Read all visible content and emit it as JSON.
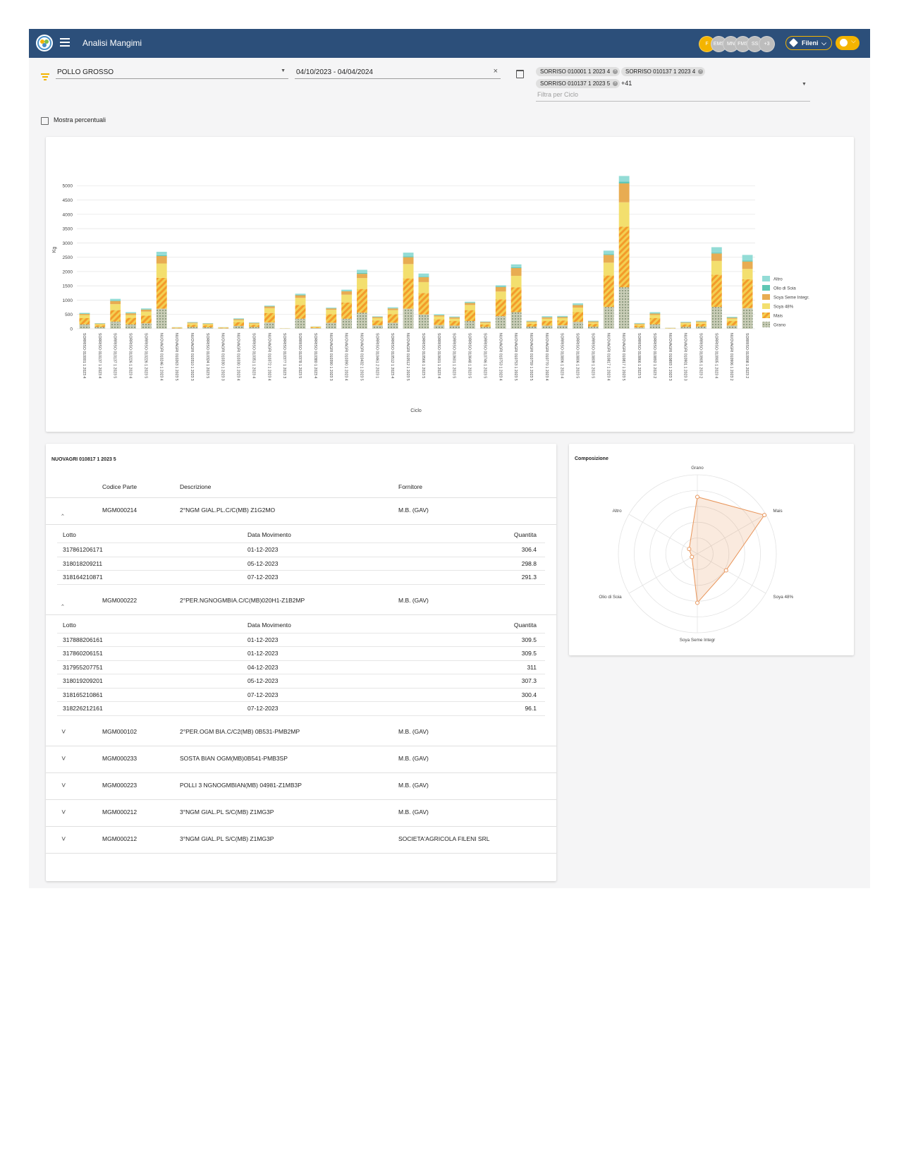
{
  "app": {
    "title": "Analisi Mangimi",
    "avatars": [
      "F",
      "EMS",
      "MN",
      "FMS",
      "SS",
      "+3"
    ],
    "company": "Fileni"
  },
  "filters": {
    "product": "POLLO GROSSO",
    "date_range": "04/10/2023  - 04/04/2024",
    "cycle_chips": [
      "SORRISO 010001 1 2023 4",
      "SORRISO 010137 1 2023 4",
      "SORRISO 010137 1 2023 5"
    ],
    "more_count": "+41",
    "cycle_placeholder": "Filtra per Ciclo"
  },
  "percent_toggle": {
    "label": "Mostra percentuali",
    "checked": false
  },
  "chart_data": {
    "type": "bar",
    "stacked": true,
    "ylabel": "Kg",
    "xlabel": "Ciclo",
    "yticks": [
      0,
      500,
      1000,
      1500,
      2000,
      2500,
      3000,
      3500,
      4000,
      4500,
      5000
    ],
    "ylim": [
      0,
      5400
    ],
    "categories": [
      "SORRISO 010001 1 2023 4",
      "SORRISO 010137 1 2023 4",
      "SORRISO 010137 1 2023 5",
      "SORRISO 010226 1 2023 4",
      "SORRISO 010226 1 2023 5",
      "NUOVAGRI 010246 1 2023 4",
      "NUOVAGRI 010263 1 2023 5",
      "NUOVAGRI 010310 1 2023 3",
      "SORRISO 010324 1 2023 5",
      "NUOVAGRI 010330 1 2023 3",
      "NUOVAGRI 010330 1 2023 4",
      "SORRISO 010351 1 2023 4",
      "NUOVAGRI 010372 1 2023 4",
      "SORRISO 010377 1 2023 3",
      "SORRISO 010378 1 2023 5",
      "SORRISO 010380 1 2023 4",
      "NUOVAGRI 010390 1 2023 3",
      "NUOVAGRI 010390 1 2023 4",
      "NUOVAGRI 010432 1 2023 5",
      "SORRISO 010461 2 2023 1",
      "SORRISO 010512 1 2023 4",
      "NUOVAGRI 010512 1 2023 5",
      "SORRISO 010566 1 2023 5",
      "SORRISO 010601 1 2023 4",
      "SORRISO 010601 1 2023 5",
      "SORRISO 010648 1 2023 5",
      "SORRISO 010746 1 2023 5",
      "NUOVAGRI 010753 1 2023 4",
      "NUOVAGRI 010753 1 2023 5",
      "NUOVAGRI 010759 1 2023 5",
      "NUOVAGRI 010770 1 2023 4",
      "SORRISO 010806 1 2023 4",
      "SORRISO 010806 1 2023 5",
      "SORRISO 010809 1 2023 5",
      "NUOVAGRI 010817 1 2023 4",
      "NUOVAGRI 010817 1 2023 5",
      "SORRISO 010866 1 2023 5",
      "SORRISO 010892 1 2023 2",
      "NUOVAGRI 010893 1 2023 3",
      "NUOVAGRI 010901 1 2023 3",
      "SORRISO 010905 1 2023 2",
      "SORRISO 010905 1 2023 4",
      "NUOVAGRI 010906 1 2023 2",
      "SORRISO 010908 1 2023 2"
    ],
    "series": [
      {
        "name": "Grano",
        "color": "#a8b8a0",
        "values": [
          150,
          60,
          250,
          150,
          190,
          700,
          15,
          60,
          50,
          15,
          100,
          60,
          220,
          5,
          350,
          25,
          210,
          350,
          560,
          120,
          210,
          700,
          500,
          130,
          110,
          270,
          60,
          440,
          580,
          75,
          110,
          120,
          240,
          70,
          760,
          1450,
          45,
          150,
          10,
          65,
          75,
          760,
          110,
          720
        ]
      },
      {
        "name": "Mais",
        "color": "#f39c2b",
        "values": [
          220,
          60,
          400,
          230,
          270,
          1080,
          20,
          80,
          70,
          20,
          130,
          80,
          330,
          5,
          480,
          30,
          300,
          570,
          830,
          170,
          300,
          1060,
          750,
          200,
          160,
          380,
          90,
          590,
          870,
          100,
          160,
          170,
          340,
          100,
          1100,
          2120,
          70,
          220,
          10,
          90,
          100,
          1130,
          160,
          1010
        ]
      },
      {
        "name": "Soya 48%",
        "color": "#f3df6e",
        "values": [
          110,
          40,
          210,
          100,
          140,
          500,
          10,
          50,
          40,
          10,
          70,
          40,
          170,
          3,
          250,
          15,
          150,
          270,
          380,
          80,
          140,
          500,
          380,
          100,
          80,
          180,
          50,
          270,
          400,
          50,
          80,
          80,
          160,
          50,
          450,
          850,
          35,
          110,
          5,
          45,
          50,
          480,
          80,
          360
        ]
      },
      {
        "name": "Soya Seme Integr.",
        "color": "#e8ac52",
        "values": [
          40,
          20,
          110,
          60,
          70,
          260,
          5,
          25,
          20,
          5,
          35,
          25,
          60,
          2,
          90,
          8,
          50,
          120,
          150,
          40,
          60,
          240,
          170,
          40,
          50,
          70,
          35,
          160,
          270,
          30,
          50,
          40,
          90,
          35,
          270,
          660,
          25,
          50,
          5,
          20,
          30,
          260,
          35,
          260
        ]
      },
      {
        "name": "Olio di Soia",
        "color": "#5fc7b4",
        "values": [
          10,
          5,
          15,
          10,
          10,
          30,
          2,
          5,
          5,
          2,
          8,
          5,
          10,
          1,
          15,
          2,
          10,
          15,
          30,
          5,
          10,
          30,
          20,
          8,
          8,
          10,
          5,
          20,
          30,
          5,
          8,
          8,
          15,
          5,
          30,
          60,
          5,
          10,
          1,
          5,
          5,
          30,
          8,
          30
        ]
      },
      {
        "name": "Altro",
        "color": "#93dcd6",
        "values": [
          25,
          10,
          60,
          30,
          30,
          120,
          3,
          15,
          10,
          3,
          20,
          10,
          20,
          1,
          40,
          5,
          20,
          40,
          110,
          20,
          30,
          130,
          110,
          30,
          20,
          35,
          15,
          40,
          100,
          20,
          30,
          30,
          45,
          20,
          120,
          200,
          20,
          40,
          3,
          20,
          20,
          190,
          25,
          200
        ]
      }
    ]
  },
  "detail": {
    "title": "NUOVAGRI 010817 1 2023 5",
    "headers": {
      "code": "Codice Parte",
      "desc": "Descrizione",
      "supplier": "Fornitore"
    },
    "sub_headers": {
      "lot": "Lotto",
      "date": "Data Movimento",
      "qty": "Quantita"
    },
    "parts": [
      {
        "code": "MGM000214",
        "desc": "2°NGM GIAL.PL.C/C(MB) Z1G2MO",
        "supplier": "M.B. (GAV)",
        "expanded": true,
        "lots": [
          {
            "lot": "317861206171",
            "date": "01-12-2023",
            "qty": "306.4"
          },
          {
            "lot": "318018209211",
            "date": "05-12-2023",
            "qty": "298.8"
          },
          {
            "lot": "318164210871",
            "date": "07-12-2023",
            "qty": "291.3"
          }
        ]
      },
      {
        "code": "MGM000222",
        "desc": "2°PER.NGNOGMBIA.C/C(MB)020H1-Z1B2MP",
        "supplier": "M.B. (GAV)",
        "expanded": true,
        "lots": [
          {
            "lot": "317888206161",
            "date": "01-12-2023",
            "qty": "309.5"
          },
          {
            "lot": "317860206151",
            "date": "01-12-2023",
            "qty": "309.5"
          },
          {
            "lot": "317955207751",
            "date": "04-12-2023",
            "qty": "311"
          },
          {
            "lot": "318019209201",
            "date": "05-12-2023",
            "qty": "307.3"
          },
          {
            "lot": "318165210861",
            "date": "07-12-2023",
            "qty": "300.4"
          },
          {
            "lot": "318226212161",
            "date": "07-12-2023",
            "qty": "96.1"
          }
        ]
      },
      {
        "code": "MGM000102",
        "desc": "2°PER.OGM BIA.C/C2(MB) 0B531-PMB2MP",
        "supplier": "M.B. (GAV)",
        "expanded": false,
        "lots": []
      },
      {
        "code": "MGM000233",
        "desc": "SOSTA BIAN OGM(MB)0B541-PMB3SP",
        "supplier": "M.B. (GAV)",
        "expanded": false,
        "lots": []
      },
      {
        "code": "MGM000223",
        "desc": "POLLI 3 NGNOGMBIAN(MB) 04981-Z1MB3P",
        "supplier": "M.B. (GAV)",
        "expanded": false,
        "lots": []
      },
      {
        "code": "MGM000212",
        "desc": "3°NGM GIAL.PL S/C(MB) Z1MG3P",
        "supplier": "M.B. (GAV)",
        "expanded": false,
        "lots": []
      },
      {
        "code": "MGM000212",
        "desc": "3°NGM GIAL.PL S/C(MB) Z1MG3P",
        "supplier": "SOCIETA'AGRICOLA FILENI SRL",
        "expanded": false,
        "lots": []
      }
    ]
  },
  "radar": {
    "title": "Composizione",
    "axes": [
      "Grano",
      "Mais",
      "Soya 48%",
      "Soya Seme Integr",
      "Olio di Soia",
      "Altro"
    ],
    "values": [
      0.72,
      0.98,
      0.42,
      0.62,
      0.08,
      0.12
    ],
    "color": "#e8955a"
  }
}
